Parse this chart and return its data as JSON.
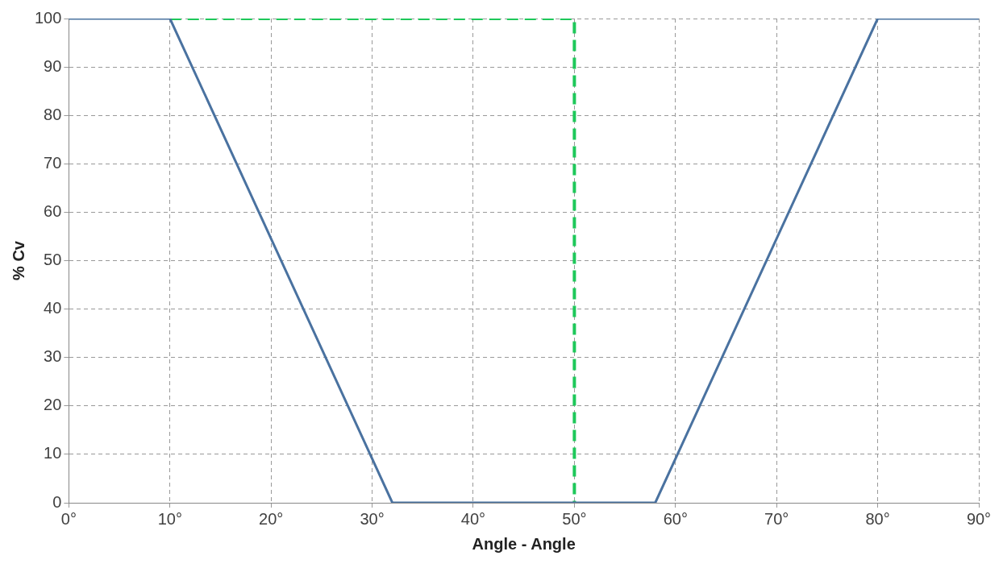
{
  "chart_data": {
    "type": "line",
    "xlabel": "Angle - Angle",
    "ylabel": "% Cv",
    "xlim": [
      0,
      90
    ],
    "xticks": [
      {
        "value": 0,
        "label": "0°"
      },
      {
        "value": 10,
        "label": "10°"
      },
      {
        "value": 20,
        "label": "20°"
      },
      {
        "value": 30,
        "label": "30°"
      },
      {
        "value": 40,
        "label": "40°"
      },
      {
        "value": 50,
        "label": "50°"
      },
      {
        "value": 60,
        "label": "60°"
      },
      {
        "value": 70,
        "label": "70°"
      },
      {
        "value": 80,
        "label": "80°"
      },
      {
        "value": 90,
        "label": "90°"
      }
    ],
    "ylim": [
      0,
      100
    ],
    "yticks": [
      0,
      10,
      20,
      30,
      40,
      50,
      60,
      70,
      80,
      90,
      100
    ],
    "grid": true,
    "legend": false,
    "marker": "none",
    "series": [
      {
        "color": "#4a72a0",
        "line_style": "solid",
        "x": [
          0,
          10,
          32,
          58,
          80,
          90
        ],
        "values": [
          100,
          100,
          0,
          0,
          100,
          100
        ]
      },
      {
        "color": "#1ec85a",
        "line_style": "dashed",
        "x": [
          10,
          50,
          50
        ],
        "values": [
          100,
          100,
          0
        ]
      }
    ]
  }
}
